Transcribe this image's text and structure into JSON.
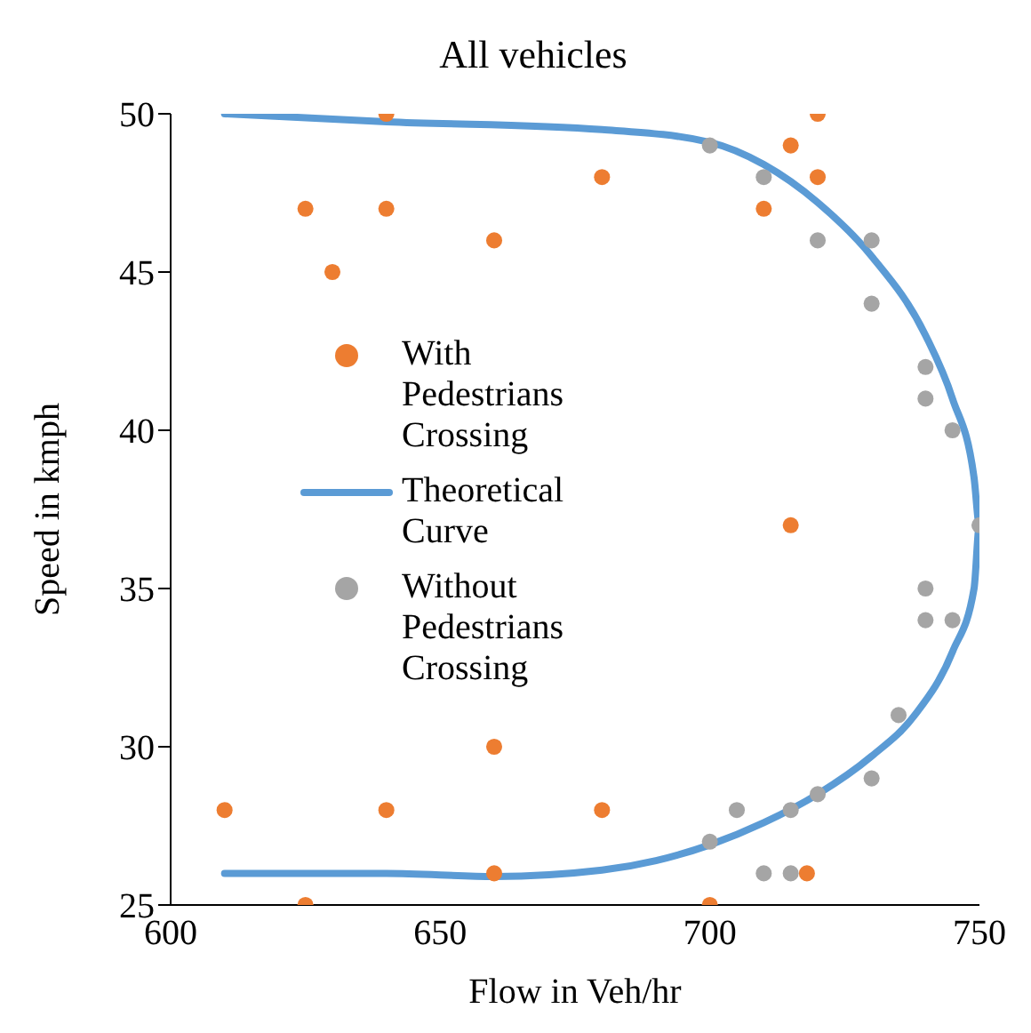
{
  "chart_data": {
    "type": "scatter",
    "title": "All vehicles",
    "xlabel": "Flow in Veh/hr",
    "ylabel": "Speed in kmph",
    "xlim": [
      600,
      750
    ],
    "xticks": [
      600,
      650,
      700,
      750
    ],
    "ylim": [
      25,
      50
    ],
    "yticks": [
      25,
      30,
      35,
      40,
      45,
      50
    ],
    "grid": false,
    "legend": "left",
    "series": [
      {
        "name": "With Pedestrians Crossing",
        "color": "#ed7d31",
        "marker": "circle",
        "x": [
          640,
          720,
          715,
          680,
          720,
          625,
          640,
          710,
          660,
          630,
          715,
          660,
          610,
          640,
          680,
          660,
          718,
          625,
          700
        ],
        "values": [
          50,
          50,
          49,
          48,
          48,
          47,
          47,
          47,
          46,
          45,
          37,
          30,
          28,
          28,
          28,
          26,
          26,
          25,
          25
        ]
      },
      {
        "name": "Theoretical Curve",
        "type": "line",
        "color": "#5b9bd5",
        "line_style": "solid",
        "x": [
          610,
          640,
          680,
          700,
          710,
          720,
          730,
          740,
          745,
          749,
          750,
          749,
          745,
          738,
          730,
          720,
          710,
          700,
          690,
          680,
          660,
          640,
          610
        ],
        "values": [
          50,
          49.75,
          49.5,
          49.1,
          48.4,
          47.2,
          45.5,
          43,
          41,
          38.5,
          37,
          35,
          33,
          31,
          29.7,
          28.5,
          27.6,
          26.9,
          26.4,
          26.1,
          25.9,
          26,
          26
        ]
      },
      {
        "name": "Without Pedestrians Crossing",
        "color": "#a5a5a5",
        "marker": "circle",
        "x": [
          700,
          710,
          720,
          730,
          730,
          740,
          740,
          745,
          750,
          740,
          740,
          745,
          735,
          730,
          705,
          715,
          720,
          700,
          710,
          715
        ],
        "values": [
          49,
          48,
          46,
          46,
          44,
          42,
          41,
          40,
          37,
          35,
          34,
          34,
          31,
          29,
          28,
          28,
          28.5,
          27,
          26,
          26
        ]
      }
    ]
  }
}
